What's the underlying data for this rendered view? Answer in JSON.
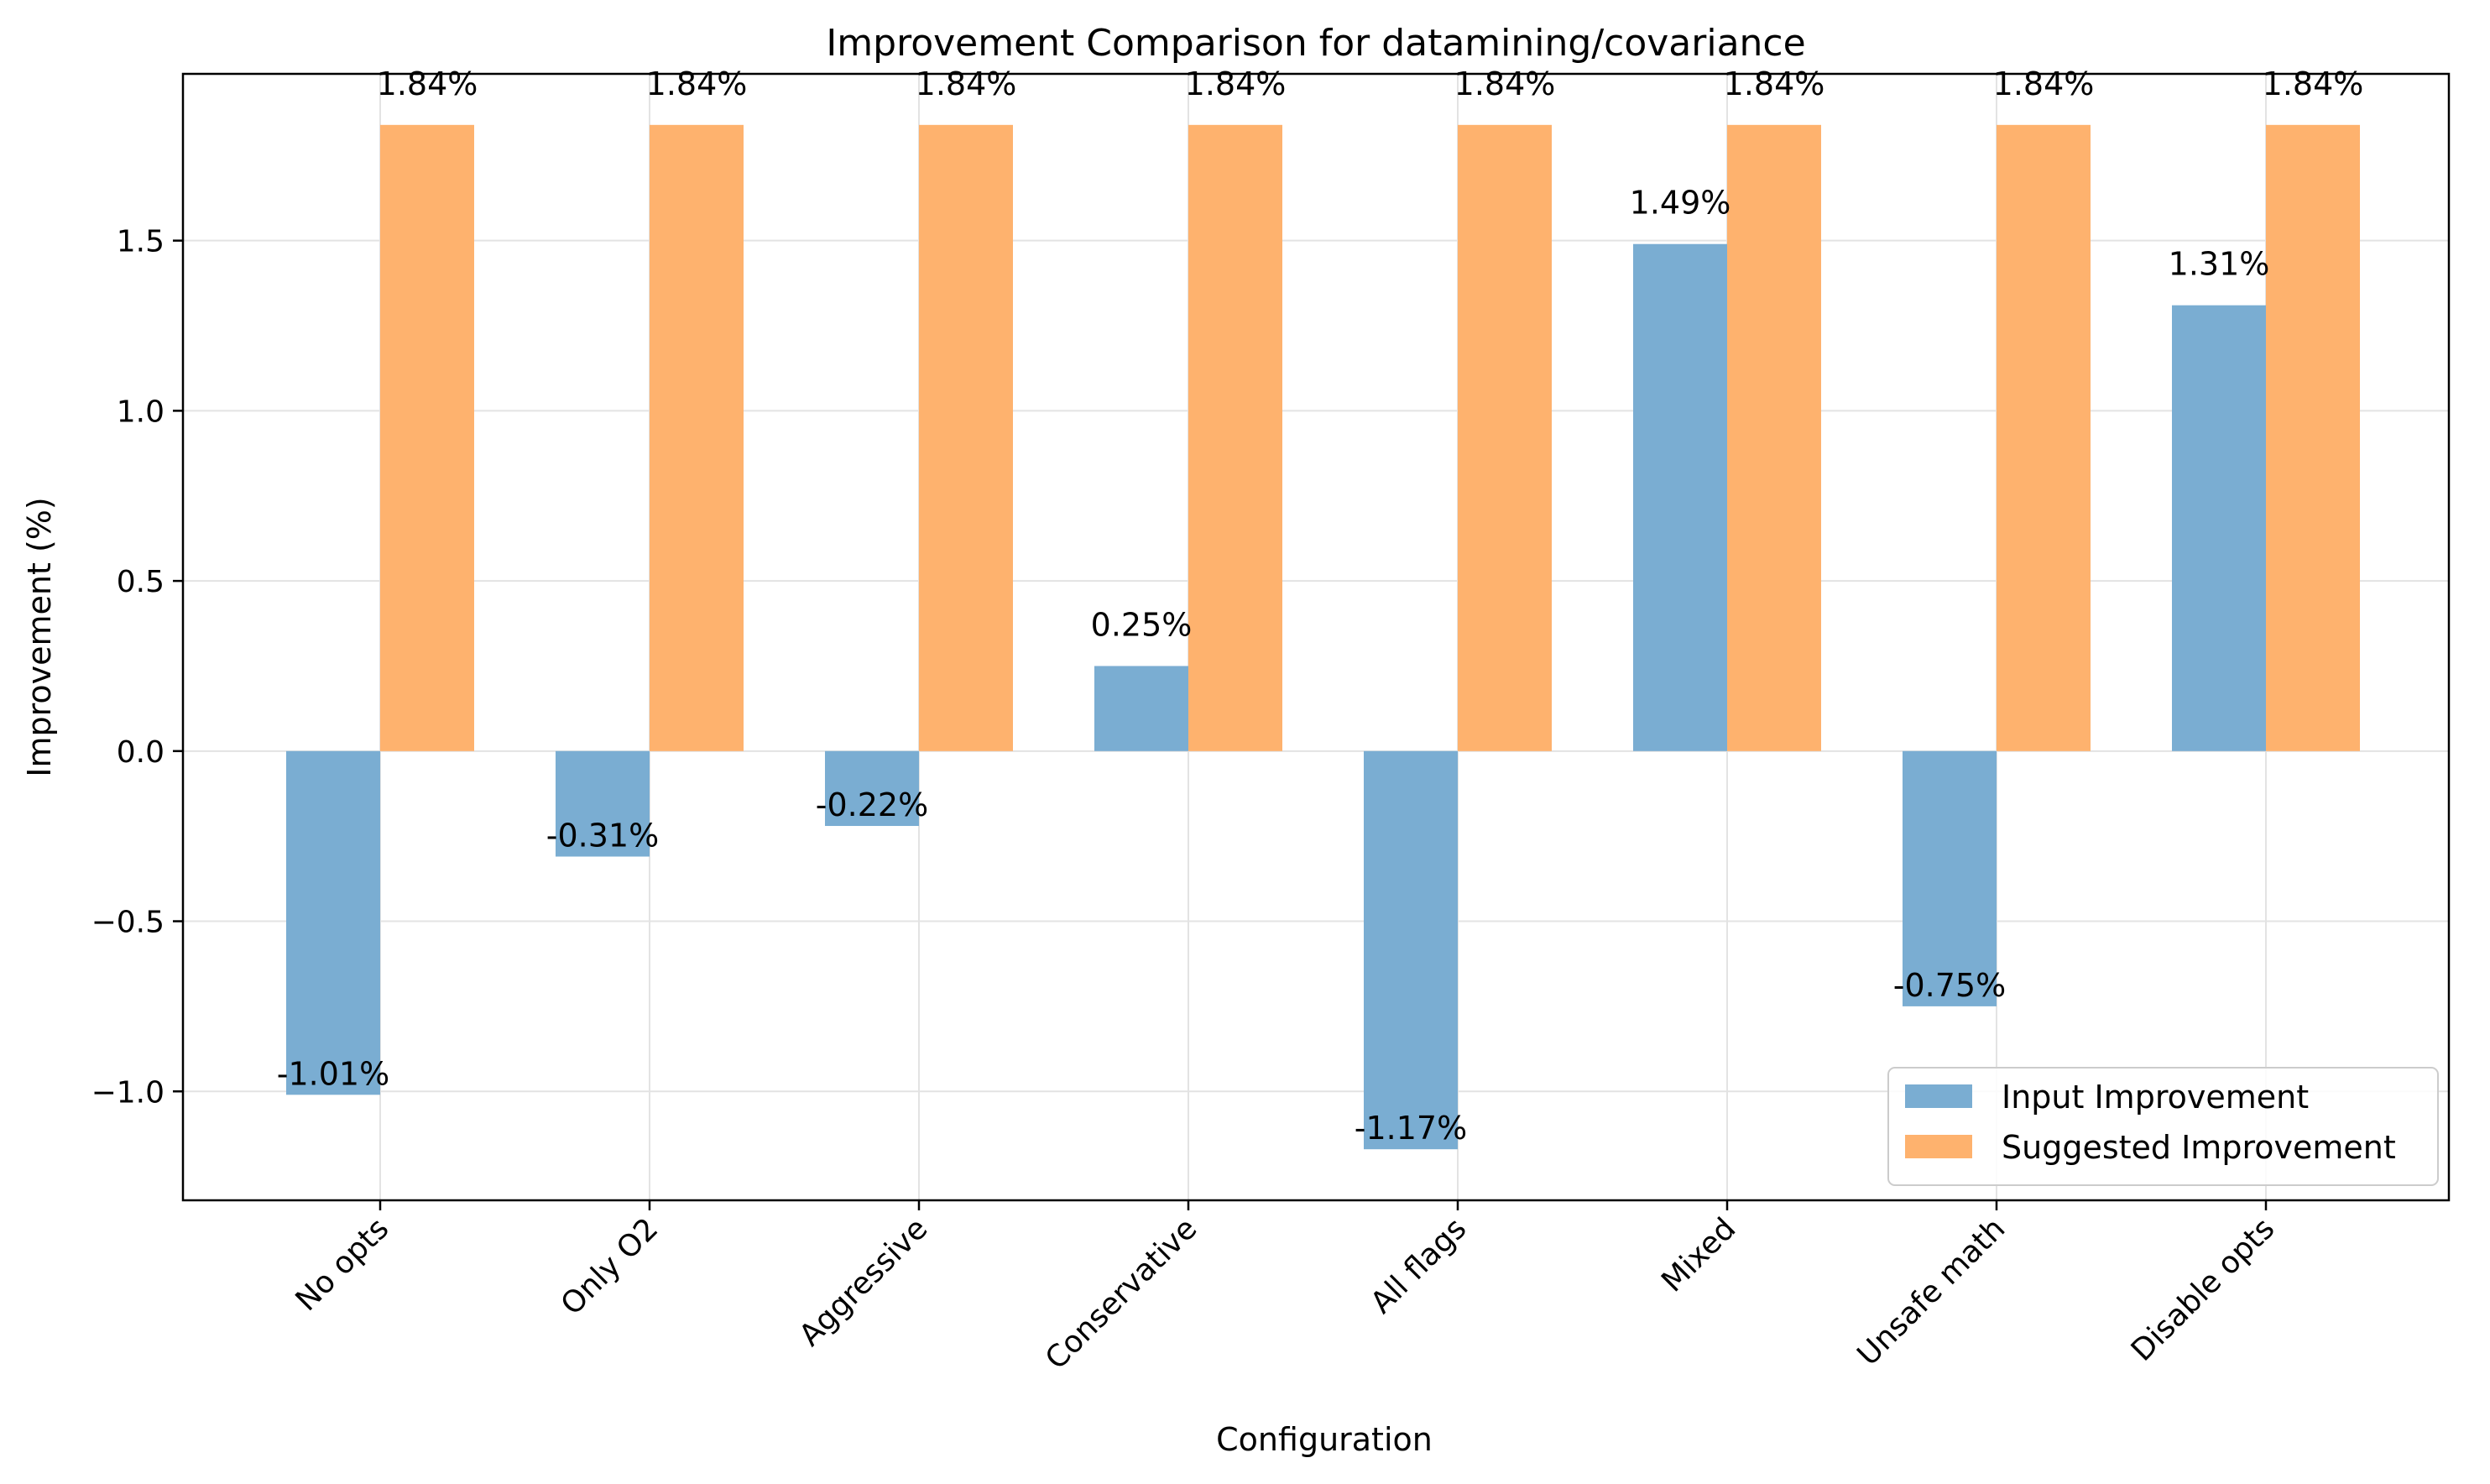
{
  "chart_data": {
    "type": "bar",
    "title": "Improvement Comparison for datamining/covariance",
    "xlabel": "Configuration",
    "ylabel": "Improvement (%)",
    "categories": [
      "No opts",
      "Only O2",
      "Aggressive",
      "Conservative",
      "All flags",
      "Mixed",
      "Unsafe math",
      "Disable opts"
    ],
    "series": [
      {
        "name": "Input Improvement",
        "color": "#7aadd2",
        "values": [
          -1.01,
          -0.31,
          -0.22,
          0.25,
          -1.17,
          1.49,
          -0.75,
          1.31
        ],
        "labels": [
          "-1.01%",
          "-0.31%",
          "-0.22%",
          "0.25%",
          "-1.17%",
          "1.49%",
          "-0.75%",
          "1.31%"
        ]
      },
      {
        "name": "Suggested Improvement",
        "color": "#feb26e",
        "values": [
          1.84,
          1.84,
          1.84,
          1.84,
          1.84,
          1.84,
          1.84,
          1.84
        ],
        "labels": [
          "1.84%",
          "1.84%",
          "1.84%",
          "1.84%",
          "1.84%",
          "1.84%",
          "1.84%",
          "1.84%"
        ]
      }
    ],
    "ylim": [
      -1.32,
      1.99
    ],
    "yticks": [
      -1.0,
      -0.5,
      0.0,
      0.5,
      1.0,
      1.5
    ],
    "ytick_labels": [
      "−1.0",
      "−0.5",
      "0.0",
      "0.5",
      "1.0",
      "1.5"
    ],
    "grid": true,
    "legend_position": "lower-right"
  }
}
